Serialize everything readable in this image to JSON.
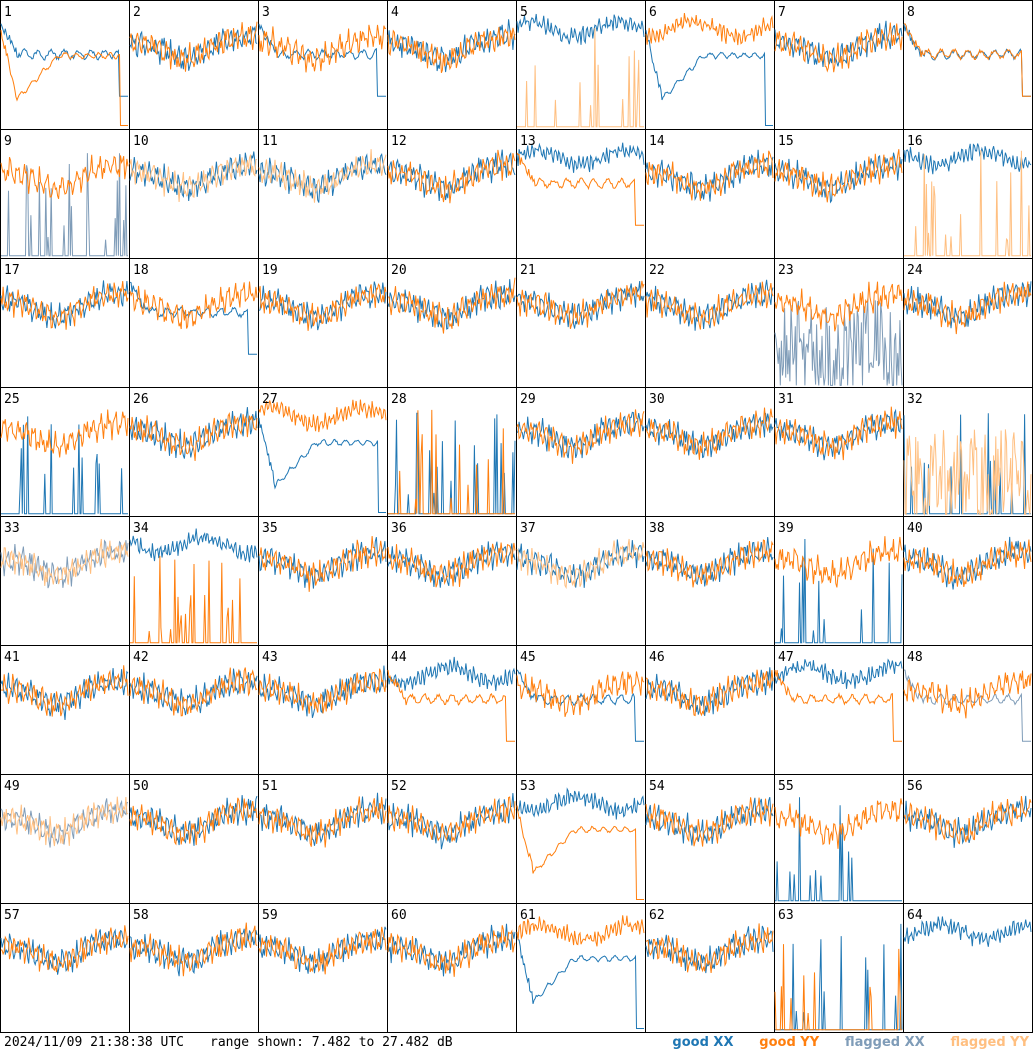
{
  "timestamp": "2024/11/09 21:38:38 UTC",
  "range_label": "range shown: 7.482 to 27.482 dB",
  "legend": {
    "good_xx": "good XX",
    "good_yy": "good YY",
    "flagged_xx": "flagged XX",
    "flagged_yy": "flagged YY"
  },
  "colors": {
    "good_xx": "#1f77b4",
    "good_yy": "#ff7f0e",
    "flagged_xx": "#7f9cb8",
    "flagged_yy": "#ffbf80",
    "frame": "#000000"
  },
  "chart_data": {
    "type": "line",
    "title": "",
    "ylim": [
      7.482,
      27.482
    ],
    "y_unit": "dB",
    "grid": false,
    "layout": "8x8 small multiples",
    "legend_position": "bottom-right",
    "tiles": [
      {
        "id": "1",
        "xx": {
          "flag": false,
          "shape": "bend"
        },
        "yy": {
          "flag": false,
          "shape": "dip"
        }
      },
      {
        "id": "2",
        "xx": {
          "flag": false,
          "shape": "normal"
        },
        "yy": {
          "flag": false,
          "shape": "normal"
        }
      },
      {
        "id": "3",
        "xx": {
          "flag": false,
          "shape": "bend"
        },
        "yy": {
          "flag": false,
          "shape": "normal"
        }
      },
      {
        "id": "4",
        "xx": {
          "flag": false,
          "shape": "normal"
        },
        "yy": {
          "flag": false,
          "shape": "normal"
        }
      },
      {
        "id": "5",
        "xx": {
          "flag": false,
          "shape": "high"
        },
        "yy": {
          "flag": true,
          "shape": "spikes"
        }
      },
      {
        "id": "6",
        "xx": {
          "flag": false,
          "shape": "dip"
        },
        "yy": {
          "flag": false,
          "shape": "high"
        }
      },
      {
        "id": "7",
        "xx": {
          "flag": false,
          "shape": "normal"
        },
        "yy": {
          "flag": false,
          "shape": "normal"
        }
      },
      {
        "id": "8",
        "xx": {
          "flag": false,
          "shape": "bend"
        },
        "yy": {
          "flag": false,
          "shape": "bend"
        }
      },
      {
        "id": "9",
        "xx": {
          "flag": true,
          "shape": "spikes"
        },
        "yy": {
          "flag": false,
          "shape": "normal"
        }
      },
      {
        "id": "10",
        "xx": {
          "flag": false,
          "shape": "normal"
        },
        "yy": {
          "flag": true,
          "shape": "normal"
        }
      },
      {
        "id": "11",
        "xx": {
          "flag": false,
          "shape": "normal"
        },
        "yy": {
          "flag": true,
          "shape": "normal"
        }
      },
      {
        "id": "12",
        "xx": {
          "flag": false,
          "shape": "normal"
        },
        "yy": {
          "flag": false,
          "shape": "normal"
        }
      },
      {
        "id": "13",
        "xx": {
          "flag": false,
          "shape": "high"
        },
        "yy": {
          "flag": false,
          "shape": "bend"
        }
      },
      {
        "id": "14",
        "xx": {
          "flag": false,
          "shape": "normal"
        },
        "yy": {
          "flag": false,
          "shape": "normal"
        }
      },
      {
        "id": "15",
        "xx": {
          "flag": false,
          "shape": "normal"
        },
        "yy": {
          "flag": false,
          "shape": "normal"
        }
      },
      {
        "id": "16",
        "xx": {
          "flag": false,
          "shape": "high"
        },
        "yy": {
          "flag": true,
          "shape": "spikes"
        }
      },
      {
        "id": "17",
        "xx": {
          "flag": false,
          "shape": "normal"
        },
        "yy": {
          "flag": false,
          "shape": "normal"
        }
      },
      {
        "id": "18",
        "xx": {
          "flag": false,
          "shape": "bend"
        },
        "yy": {
          "flag": false,
          "shape": "normal"
        }
      },
      {
        "id": "19",
        "xx": {
          "flag": false,
          "shape": "normal"
        },
        "yy": {
          "flag": false,
          "shape": "normal"
        }
      },
      {
        "id": "20",
        "xx": {
          "flag": false,
          "shape": "normal"
        },
        "yy": {
          "flag": false,
          "shape": "normal"
        }
      },
      {
        "id": "21",
        "xx": {
          "flag": false,
          "shape": "normal"
        },
        "yy": {
          "flag": false,
          "shape": "normal"
        }
      },
      {
        "id": "22",
        "xx": {
          "flag": false,
          "shape": "normal"
        },
        "yy": {
          "flag": false,
          "shape": "normal"
        }
      },
      {
        "id": "23",
        "xx": {
          "flag": true,
          "shape": "noisy"
        },
        "yy": {
          "flag": false,
          "shape": "normal"
        }
      },
      {
        "id": "24",
        "xx": {
          "flag": false,
          "shape": "normal"
        },
        "yy": {
          "flag": false,
          "shape": "normal"
        }
      },
      {
        "id": "25",
        "xx": {
          "flag": false,
          "shape": "spikes"
        },
        "yy": {
          "flag": false,
          "shape": "normal"
        }
      },
      {
        "id": "26",
        "xx": {
          "flag": false,
          "shape": "normal"
        },
        "yy": {
          "flag": false,
          "shape": "normal"
        }
      },
      {
        "id": "27",
        "xx": {
          "flag": false,
          "shape": "dip"
        },
        "yy": {
          "flag": false,
          "shape": "high"
        }
      },
      {
        "id": "28",
        "xx": {
          "flag": false,
          "shape": "spikes"
        },
        "yy": {
          "flag": false,
          "shape": "spikes"
        }
      },
      {
        "id": "29",
        "xx": {
          "flag": false,
          "shape": "normal"
        },
        "yy": {
          "flag": false,
          "shape": "normal"
        }
      },
      {
        "id": "30",
        "xx": {
          "flag": false,
          "shape": "normal"
        },
        "yy": {
          "flag": false,
          "shape": "normal"
        }
      },
      {
        "id": "31",
        "xx": {
          "flag": false,
          "shape": "normal"
        },
        "yy": {
          "flag": false,
          "shape": "normal"
        }
      },
      {
        "id": "32",
        "xx": {
          "flag": false,
          "shape": "spikes"
        },
        "yy": {
          "flag": true,
          "shape": "noisy"
        }
      },
      {
        "id": "33",
        "xx": {
          "flag": true,
          "shape": "normal"
        },
        "yy": {
          "flag": true,
          "shape": "normal"
        }
      },
      {
        "id": "34",
        "xx": {
          "flag": false,
          "shape": "high"
        },
        "yy": {
          "flag": false,
          "shape": "spikes"
        }
      },
      {
        "id": "35",
        "xx": {
          "flag": false,
          "shape": "normal"
        },
        "yy": {
          "flag": false,
          "shape": "normal"
        }
      },
      {
        "id": "36",
        "xx": {
          "flag": false,
          "shape": "normal"
        },
        "yy": {
          "flag": false,
          "shape": "normal"
        }
      },
      {
        "id": "37",
        "xx": {
          "flag": false,
          "shape": "normal"
        },
        "yy": {
          "flag": true,
          "shape": "normal"
        }
      },
      {
        "id": "38",
        "xx": {
          "flag": false,
          "shape": "normal"
        },
        "yy": {
          "flag": false,
          "shape": "normal"
        }
      },
      {
        "id": "39",
        "xx": {
          "flag": false,
          "shape": "spikes"
        },
        "yy": {
          "flag": false,
          "shape": "normal"
        }
      },
      {
        "id": "40",
        "xx": {
          "flag": false,
          "shape": "normal"
        },
        "yy": {
          "flag": false,
          "shape": "normal"
        }
      },
      {
        "id": "41",
        "xx": {
          "flag": false,
          "shape": "normal"
        },
        "yy": {
          "flag": false,
          "shape": "normal"
        }
      },
      {
        "id": "42",
        "xx": {
          "flag": false,
          "shape": "normal"
        },
        "yy": {
          "flag": false,
          "shape": "normal"
        }
      },
      {
        "id": "43",
        "xx": {
          "flag": false,
          "shape": "normal"
        },
        "yy": {
          "flag": false,
          "shape": "normal"
        }
      },
      {
        "id": "44",
        "xx": {
          "flag": false,
          "shape": "high"
        },
        "yy": {
          "flag": false,
          "shape": "bend"
        }
      },
      {
        "id": "45",
        "xx": {
          "flag": false,
          "shape": "bend"
        },
        "yy": {
          "flag": false,
          "shape": "normal"
        }
      },
      {
        "id": "46",
        "xx": {
          "flag": false,
          "shape": "normal"
        },
        "yy": {
          "flag": false,
          "shape": "normal"
        }
      },
      {
        "id": "47",
        "xx": {
          "flag": false,
          "shape": "high"
        },
        "yy": {
          "flag": false,
          "shape": "bend"
        }
      },
      {
        "id": "48",
        "xx": {
          "flag": true,
          "shape": "bend"
        },
        "yy": {
          "flag": false,
          "shape": "normal"
        }
      },
      {
        "id": "49",
        "xx": {
          "flag": true,
          "shape": "normal"
        },
        "yy": {
          "flag": true,
          "shape": "normal"
        }
      },
      {
        "id": "50",
        "xx": {
          "flag": false,
          "shape": "normal"
        },
        "yy": {
          "flag": false,
          "shape": "normal"
        }
      },
      {
        "id": "51",
        "xx": {
          "flag": false,
          "shape": "normal"
        },
        "yy": {
          "flag": false,
          "shape": "normal"
        }
      },
      {
        "id": "52",
        "xx": {
          "flag": false,
          "shape": "normal"
        },
        "yy": {
          "flag": false,
          "shape": "normal"
        }
      },
      {
        "id": "53",
        "xx": {
          "flag": false,
          "shape": "high"
        },
        "yy": {
          "flag": false,
          "shape": "dip"
        }
      },
      {
        "id": "54",
        "xx": {
          "flag": false,
          "shape": "normal"
        },
        "yy": {
          "flag": false,
          "shape": "normal"
        }
      },
      {
        "id": "55",
        "xx": {
          "flag": false,
          "shape": "spikes"
        },
        "yy": {
          "flag": false,
          "shape": "normal"
        }
      },
      {
        "id": "56",
        "xx": {
          "flag": false,
          "shape": "normal"
        },
        "yy": {
          "flag": false,
          "shape": "normal"
        }
      },
      {
        "id": "57",
        "xx": {
          "flag": false,
          "shape": "normal"
        },
        "yy": {
          "flag": false,
          "shape": "normal"
        }
      },
      {
        "id": "58",
        "xx": {
          "flag": false,
          "shape": "normal"
        },
        "yy": {
          "flag": false,
          "shape": "normal"
        }
      },
      {
        "id": "59",
        "xx": {
          "flag": false,
          "shape": "normal"
        },
        "yy": {
          "flag": false,
          "shape": "normal"
        }
      },
      {
        "id": "60",
        "xx": {
          "flag": false,
          "shape": "normal"
        },
        "yy": {
          "flag": false,
          "shape": "normal"
        }
      },
      {
        "id": "61",
        "xx": {
          "flag": false,
          "shape": "dip"
        },
        "yy": {
          "flag": false,
          "shape": "high"
        }
      },
      {
        "id": "62",
        "xx": {
          "flag": false,
          "shape": "normal"
        },
        "yy": {
          "flag": false,
          "shape": "normal"
        }
      },
      {
        "id": "63",
        "xx": {
          "flag": false,
          "shape": "spikes"
        },
        "yy": {
          "flag": false,
          "shape": "spikes"
        }
      },
      {
        "id": "64",
        "xx": {
          "flag": false,
          "shape": "high"
        },
        "yy": {
          "flag": false,
          "shape": "none"
        }
      }
    ]
  }
}
